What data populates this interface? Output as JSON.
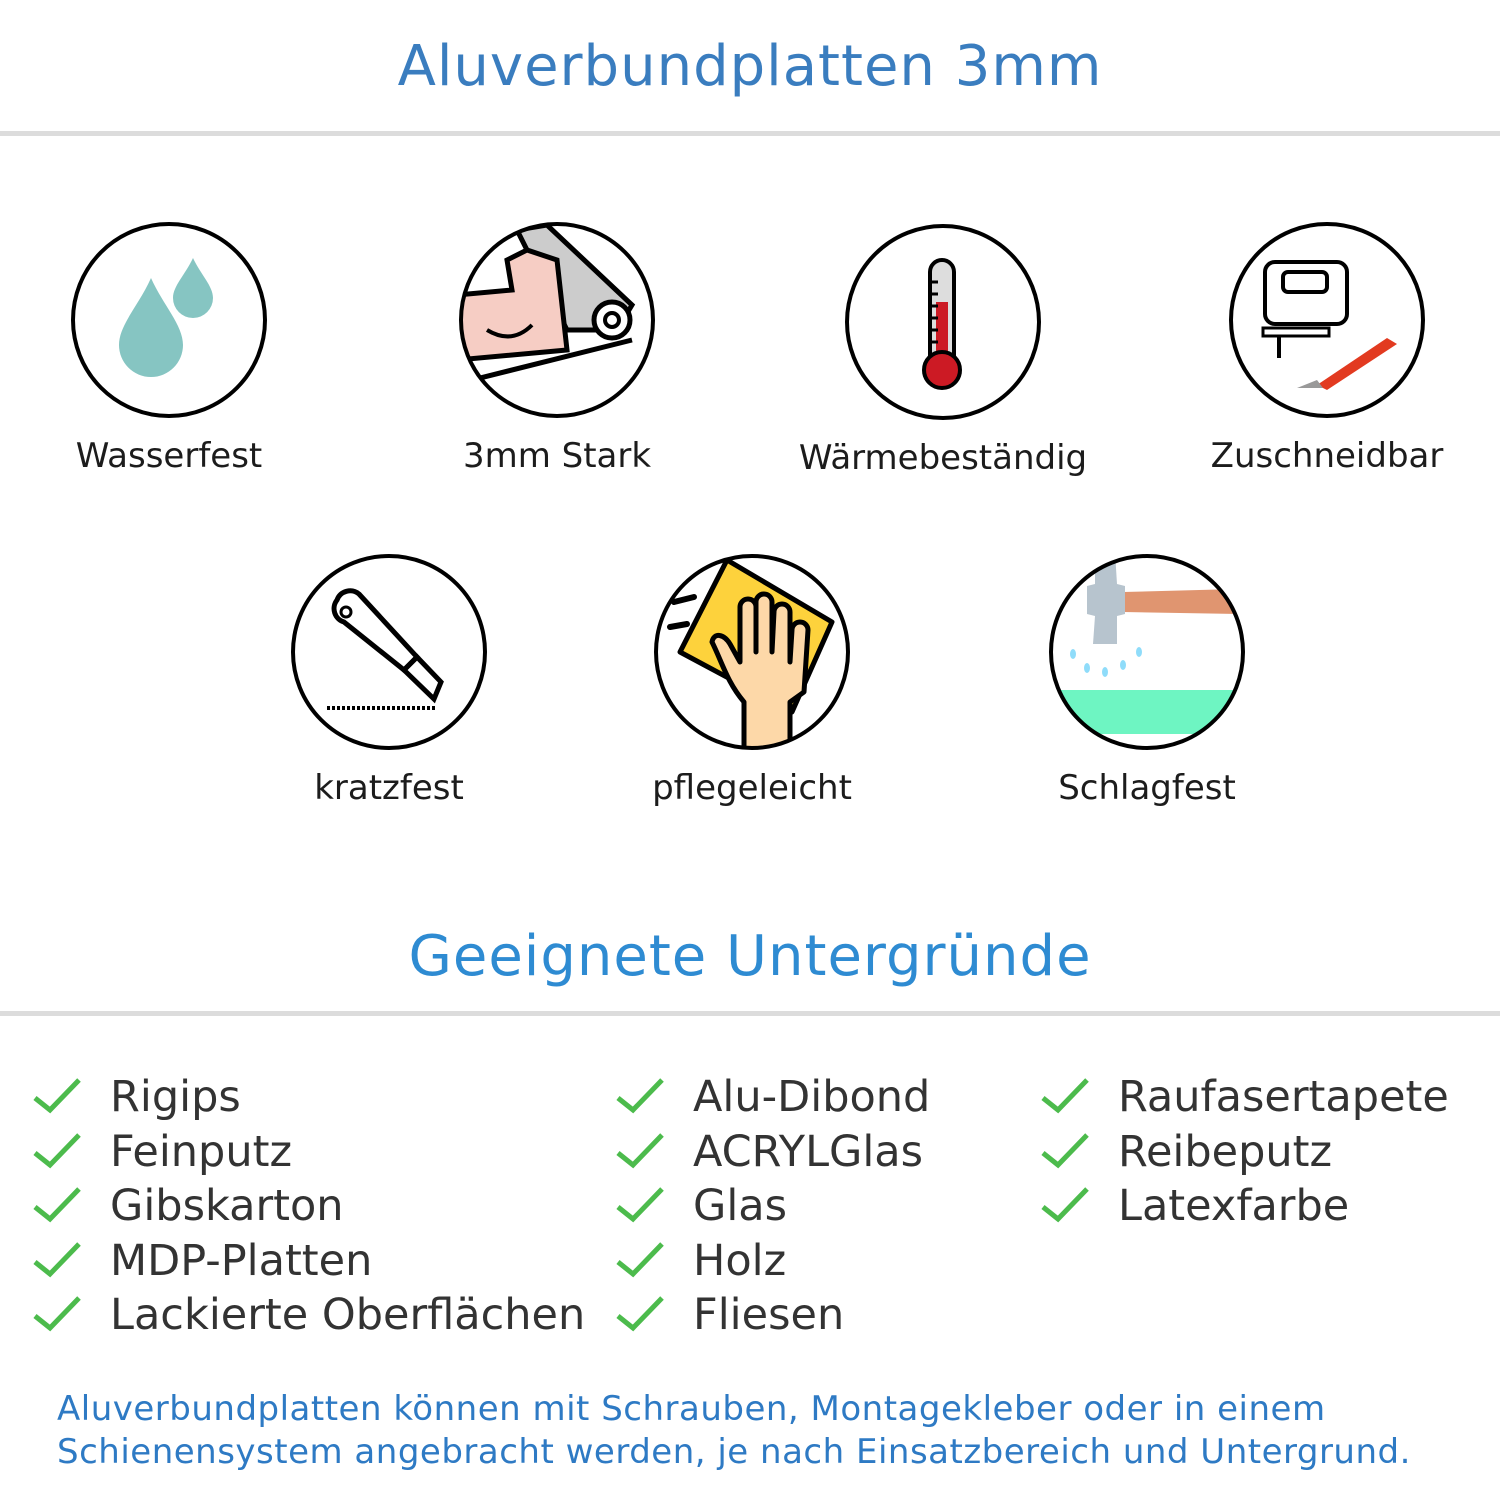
{
  "header": {
    "title": "Aluverbundplatten 3mm"
  },
  "features": [
    {
      "label": "Wasserfest",
      "icon": "water-drops-icon"
    },
    {
      "label": "3mm Stark",
      "icon": "muscle-arm-icon"
    },
    {
      "label": "Wärmebeständig",
      "icon": "thermometer-icon"
    },
    {
      "label": "Zuschneidbar",
      "icon": "jigsaw-cutter-icon"
    },
    {
      "label": "kratzfest",
      "icon": "box-cutter-icon"
    },
    {
      "label": "pflegeleicht",
      "icon": "wiping-hand-icon"
    },
    {
      "label": "Schlagfest",
      "icon": "hammer-icon"
    }
  ],
  "surfaces": {
    "title": "Geeignete Untergründe",
    "columns": [
      [
        "Rigips",
        "Feinputz",
        "Gibskarton",
        "MDP-Platten",
        "Lackierte Oberflächen"
      ],
      [
        "Alu-Dibond",
        "ACRYLGlas",
        "Glas",
        "Holz",
        "Fliesen"
      ],
      [
        "Raufasertapete",
        "Reibeputz",
        "Latexfarbe"
      ]
    ]
  },
  "note": {
    "line1": "Aluverbundplatten können mit Schrauben, Montagekleber oder in einem",
    "line2": "Schienensystem angebracht werden, je nach Einsatzbereich und Untergrund."
  },
  "colors": {
    "title": "#3a7dbf",
    "heading": "#2e8bd2",
    "check": "#4cbb4c",
    "note": "#2e7ac4"
  }
}
